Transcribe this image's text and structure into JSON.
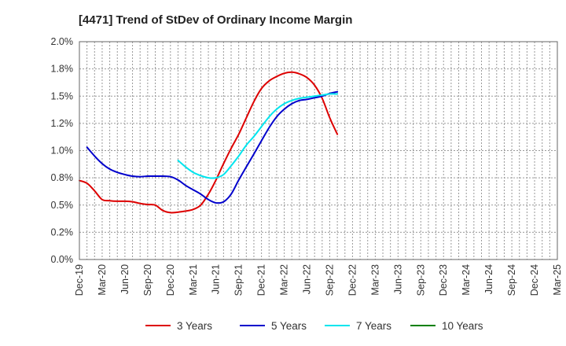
{
  "chart_data": {
    "type": "line",
    "title": "[4471]  Trend of StDev of Ordinary Income Margin",
    "xlabel": "",
    "ylabel": "",
    "x_tick_labels": [
      "Dec-19",
      "Mar-20",
      "Jun-20",
      "Sep-20",
      "Dec-20",
      "Mar-21",
      "Jun-21",
      "Sep-21",
      "Dec-21",
      "Mar-22",
      "Jun-22",
      "Sep-22",
      "Dec-22",
      "Mar-23",
      "Jun-23",
      "Sep-23",
      "Dec-23",
      "Mar-24",
      "Jun-24",
      "Sep-24",
      "Dec-24",
      "Mar-25"
    ],
    "y_tick_labels": [
      "0.0%",
      "0.2%",
      "0.5%",
      "0.8%",
      "1.0%",
      "1.2%",
      "1.5%",
      "1.8%",
      "2.0%"
    ],
    "ylim": [
      0,
      2.0
    ],
    "y_unit": "%",
    "grid": true,
    "legend_position": "bottom",
    "series": [
      {
        "name": "3 Years",
        "color": "#dd0000",
        "points": [
          [
            0,
            0.725
          ],
          [
            1,
            0.7
          ],
          [
            2,
            0.63
          ],
          [
            3,
            0.55
          ],
          [
            4,
            0.54
          ],
          [
            5,
            0.535
          ],
          [
            6,
            0.535
          ],
          [
            7,
            0.53
          ],
          [
            8,
            0.515
          ],
          [
            9,
            0.505
          ],
          [
            10,
            0.5
          ],
          [
            11,
            0.45
          ],
          [
            12,
            0.43
          ],
          [
            13,
            0.435
          ],
          [
            14,
            0.445
          ],
          [
            15,
            0.46
          ],
          [
            16,
            0.5
          ],
          [
            17,
            0.6
          ],
          [
            18,
            0.73
          ],
          [
            19,
            0.88
          ],
          [
            20,
            1.02
          ],
          [
            21,
            1.15
          ],
          [
            22,
            1.3
          ],
          [
            23,
            1.45
          ],
          [
            24,
            1.57
          ],
          [
            25,
            1.64
          ],
          [
            26,
            1.68
          ],
          [
            27,
            1.71
          ],
          [
            28,
            1.72
          ],
          [
            29,
            1.705
          ],
          [
            30,
            1.67
          ],
          [
            31,
            1.6
          ],
          [
            32,
            1.48
          ],
          [
            33,
            1.3
          ],
          [
            34,
            1.15
          ]
        ]
      },
      {
        "name": "5 Years",
        "color": "#0000cc",
        "points": [
          [
            1,
            1.03
          ],
          [
            2,
            0.95
          ],
          [
            3,
            0.88
          ],
          [
            4,
            0.83
          ],
          [
            5,
            0.8
          ],
          [
            6,
            0.78
          ],
          [
            7,
            0.765
          ],
          [
            8,
            0.76
          ],
          [
            9,
            0.765
          ],
          [
            10,
            0.765
          ],
          [
            11,
            0.765
          ],
          [
            12,
            0.76
          ],
          [
            13,
            0.73
          ],
          [
            14,
            0.68
          ],
          [
            15,
            0.64
          ],
          [
            16,
            0.6
          ],
          [
            17,
            0.55
          ],
          [
            18,
            0.52
          ],
          [
            19,
            0.53
          ],
          [
            20,
            0.6
          ],
          [
            21,
            0.73
          ],
          [
            22,
            0.85
          ],
          [
            23,
            0.97
          ],
          [
            24,
            1.09
          ],
          [
            25,
            1.21
          ],
          [
            26,
            1.31
          ],
          [
            27,
            1.38
          ],
          [
            28,
            1.43
          ],
          [
            29,
            1.46
          ],
          [
            30,
            1.47
          ],
          [
            31,
            1.485
          ],
          [
            32,
            1.5
          ],
          [
            33,
            1.525
          ],
          [
            34,
            1.54
          ]
        ]
      },
      {
        "name": "7 Years",
        "color": "#00e5ee",
        "points": [
          [
            13,
            0.91
          ],
          [
            14,
            0.85
          ],
          [
            15,
            0.8
          ],
          [
            16,
            0.77
          ],
          [
            17,
            0.75
          ],
          [
            18,
            0.75
          ],
          [
            19,
            0.78
          ],
          [
            20,
            0.86
          ],
          [
            21,
            0.95
          ],
          [
            22,
            1.05
          ],
          [
            23,
            1.13
          ],
          [
            24,
            1.22
          ],
          [
            25,
            1.31
          ],
          [
            26,
            1.38
          ],
          [
            27,
            1.43
          ],
          [
            28,
            1.46
          ],
          [
            29,
            1.48
          ],
          [
            30,
            1.49
          ],
          [
            31,
            1.5
          ],
          [
            32,
            1.51
          ],
          [
            33,
            1.52
          ],
          [
            34,
            1.52
          ]
        ]
      },
      {
        "name": "10 Years",
        "color": "#008000",
        "points": []
      }
    ]
  }
}
